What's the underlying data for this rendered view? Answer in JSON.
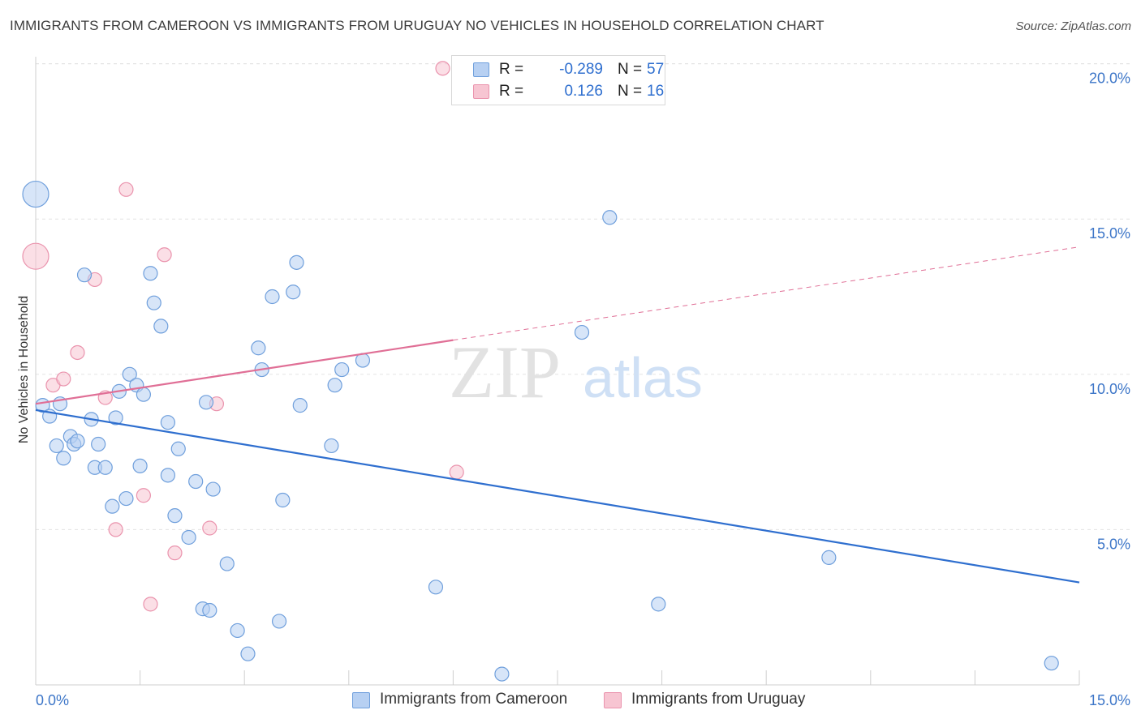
{
  "title": "IMMIGRANTS FROM CAMEROON VS IMMIGRANTS FROM URUGUAY NO VEHICLES IN HOUSEHOLD CORRELATION CHART",
  "source": "Source: ZipAtlas.com",
  "colors": {
    "cameroon_fill": "#b7d0f2",
    "cameroon_stroke": "#6f9fdc",
    "cameroon_line": "#2f6fcf",
    "uruguay_fill": "#f7c5d2",
    "uruguay_stroke": "#ea93ad",
    "uruguay_line": "#e06f96",
    "tick_text": "#3d76c8",
    "grid": "#e3e3e3"
  },
  "legend": {
    "rows": [
      {
        "r_label": "R =",
        "r_value": "-0.289",
        "n_label": "N =",
        "n_value": "57"
      },
      {
        "r_label": "R =",
        "r_value": "0.126",
        "n_label": "N =",
        "n_value": "16"
      }
    ]
  },
  "bottom_legend": {
    "cameroon": "Immigrants from Cameroon",
    "uruguay": "Immigrants from Uruguay"
  },
  "watermark": {
    "zip": "ZIP",
    "atlas": "atlas"
  },
  "chart_data": {
    "type": "scatter",
    "title": "IMMIGRANTS FROM CAMEROON VS IMMIGRANTS FROM URUGUAY NO VEHICLES IN HOUSEHOLD CORRELATION CHART",
    "xlabel": "",
    "ylabel": "No Vehicles in Household",
    "xlim": [
      0,
      15
    ],
    "ylim": [
      0,
      20
    ],
    "x_tick_labels": [
      {
        "value": 0,
        "label": "0.0%"
      },
      {
        "value": 15,
        "label": "15.0%"
      }
    ],
    "y_tick_labels": [
      {
        "value": 5,
        "label": "5.0%"
      },
      {
        "value": 10,
        "label": "10.0%"
      },
      {
        "value": 15,
        "label": "15.0%"
      },
      {
        "value": 20,
        "label": "20.0%"
      }
    ],
    "x_minor_ticks": [
      0,
      1.5,
      3,
      4.5,
      6,
      7.5,
      9,
      10.5,
      12,
      13.5,
      15
    ],
    "grid": true,
    "series": [
      {
        "name": "Immigrants from Cameroon",
        "r": -0.289,
        "n": 57,
        "points": [
          {
            "x": 0.0,
            "y": 15.8,
            "s": 2
          },
          {
            "x": 0.1,
            "y": 9.0
          },
          {
            "x": 0.2,
            "y": 8.65
          },
          {
            "x": 0.3,
            "y": 7.7
          },
          {
            "x": 0.35,
            "y": 9.05
          },
          {
            "x": 0.4,
            "y": 7.3
          },
          {
            "x": 0.5,
            "y": 8.0
          },
          {
            "x": 0.55,
            "y": 7.75
          },
          {
            "x": 0.6,
            "y": 7.85
          },
          {
            "x": 0.7,
            "y": 13.2
          },
          {
            "x": 0.8,
            "y": 8.55
          },
          {
            "x": 0.85,
            "y": 7.0
          },
          {
            "x": 0.9,
            "y": 7.75
          },
          {
            "x": 1.0,
            "y": 7.0
          },
          {
            "x": 1.1,
            "y": 5.75
          },
          {
            "x": 1.15,
            "y": 8.6
          },
          {
            "x": 1.2,
            "y": 9.45
          },
          {
            "x": 1.3,
            "y": 6.0
          },
          {
            "x": 1.35,
            "y": 10.0
          },
          {
            "x": 1.5,
            "y": 7.05
          },
          {
            "x": 1.45,
            "y": 9.65
          },
          {
            "x": 1.55,
            "y": 9.35
          },
          {
            "x": 1.65,
            "y": 13.25
          },
          {
            "x": 1.7,
            "y": 12.3
          },
          {
            "x": 1.8,
            "y": 11.55
          },
          {
            "x": 1.9,
            "y": 6.75
          },
          {
            "x": 1.9,
            "y": 8.45
          },
          {
            "x": 2.0,
            "y": 5.45
          },
          {
            "x": 2.05,
            "y": 7.6
          },
          {
            "x": 2.2,
            "y": 4.75
          },
          {
            "x": 2.3,
            "y": 6.55
          },
          {
            "x": 2.4,
            "y": 2.45
          },
          {
            "x": 2.45,
            "y": 9.1
          },
          {
            "x": 2.5,
            "y": 2.4
          },
          {
            "x": 2.55,
            "y": 6.3
          },
          {
            "x": 2.75,
            "y": 3.9
          },
          {
            "x": 2.9,
            "y": 1.75
          },
          {
            "x": 3.05,
            "y": 1.0
          },
          {
            "x": 3.2,
            "y": 10.85
          },
          {
            "x": 3.25,
            "y": 10.15
          },
          {
            "x": 3.4,
            "y": 12.5
          },
          {
            "x": 3.5,
            "y": 2.05
          },
          {
            "x": 3.55,
            "y": 5.95
          },
          {
            "x": 3.7,
            "y": 12.65
          },
          {
            "x": 3.75,
            "y": 13.6
          },
          {
            "x": 3.8,
            "y": 9.0
          },
          {
            "x": 4.25,
            "y": 7.7
          },
          {
            "x": 4.3,
            "y": 9.65
          },
          {
            "x": 4.4,
            "y": 10.15
          },
          {
            "x": 4.7,
            "y": 10.45
          },
          {
            "x": 5.75,
            "y": 3.15
          },
          {
            "x": 6.7,
            "y": 0.35
          },
          {
            "x": 8.25,
            "y": 15.05
          },
          {
            "x": 7.85,
            "y": 11.35
          },
          {
            "x": 8.95,
            "y": 2.6
          },
          {
            "x": 11.4,
            "y": 4.1
          },
          {
            "x": 14.6,
            "y": 0.7
          }
        ],
        "trend": {
          "x0": 0,
          "y0": 8.85,
          "x1": 15,
          "y1": 3.3
        }
      },
      {
        "name": "Immigrants from Uruguay",
        "r": 0.126,
        "n": 16,
        "points": [
          {
            "x": 0.0,
            "y": 13.8,
            "s": 2
          },
          {
            "x": 0.25,
            "y": 9.65
          },
          {
            "x": 0.4,
            "y": 9.85
          },
          {
            "x": 0.6,
            "y": 10.7
          },
          {
            "x": 0.85,
            "y": 13.05
          },
          {
            "x": 1.0,
            "y": 9.25
          },
          {
            "x": 1.15,
            "y": 5.0
          },
          {
            "x": 1.3,
            "y": 15.95
          },
          {
            "x": 1.55,
            "y": 6.1
          },
          {
            "x": 1.65,
            "y": 2.6
          },
          {
            "x": 1.85,
            "y": 13.85
          },
          {
            "x": 2.0,
            "y": 4.25
          },
          {
            "x": 2.5,
            "y": 5.05
          },
          {
            "x": 2.6,
            "y": 9.05
          },
          {
            "x": 6.05,
            "y": 6.85
          },
          {
            "x": 5.85,
            "y": 19.85
          }
        ],
        "trend": {
          "x0": 0,
          "y0": 9.05,
          "x1": 6,
          "y1": 11.1,
          "dash_to_x": 15,
          "dash_to_y": 14.1
        }
      }
    ]
  }
}
